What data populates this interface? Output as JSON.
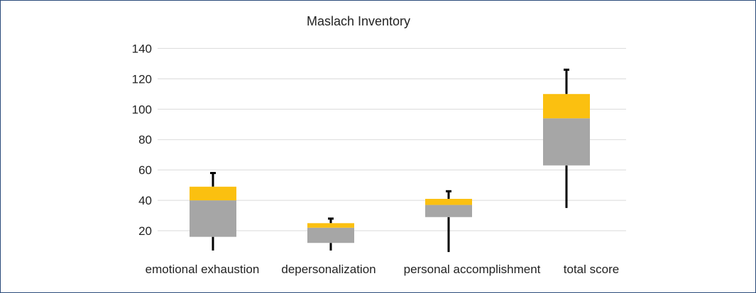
{
  "chart_data": {
    "type": "boxplot",
    "title": "Maslach Inventory",
    "xlabel": "",
    "ylabel": "",
    "ylim": [
      0,
      140
    ],
    "yticks": [
      20,
      40,
      60,
      80,
      100,
      120,
      140
    ],
    "grid": true,
    "categories": [
      "emotional exhaustion",
      "depersonalization",
      "personal accomplishment",
      "total score"
    ],
    "boxes": [
      {
        "category": "emotional exhaustion",
        "min": 7,
        "q1": 16,
        "median": 40,
        "q3": 49,
        "max": 58
      },
      {
        "category": "depersonalization",
        "min": 7,
        "q1": 12,
        "median": 22,
        "q3": 25,
        "max": 28
      },
      {
        "category": "personal accomplishment",
        "min": 6,
        "q1": 29,
        "median": 37,
        "q3": 41,
        "max": 46
      },
      {
        "category": "total score",
        "min": 35,
        "q1": 63,
        "median": 94,
        "q3": 110,
        "max": 126
      }
    ],
    "colors": {
      "lower_box": "#a6a6a6",
      "upper_box": "#fbc010",
      "whisker": "#000000",
      "grid": "#d9d9d9",
      "frame": "#2a4a7a"
    }
  }
}
